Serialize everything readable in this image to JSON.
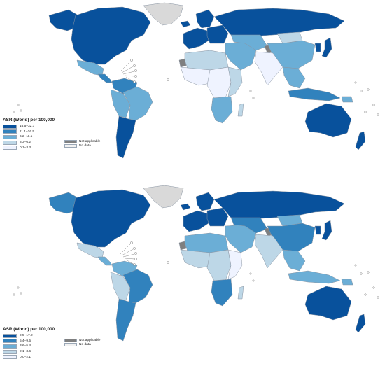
{
  "colors": {
    "c1": "#08519c",
    "c2": "#3182bd",
    "c3": "#6baed6",
    "c4": "#bdd7e7",
    "c5": "#eff3ff",
    "not_applicable": "#7f7f7f",
    "no_data": "#f2f2f2",
    "greenland": "#d9d9d9",
    "border": "#8a95a3"
  },
  "maps": [
    {
      "legend": {
        "title": "ASR (World) per 100,000",
        "classes": [
          "16.5–32.7",
          "11.1–16.5",
          "6.2–11.1",
          "3.3–6.2",
          "0.1–3.3"
        ]
      },
      "na_legend": {
        "not_applicable": "Not applicable",
        "no_data": "No data"
      },
      "regions": [
        {
          "name": "north-america",
          "level": 1
        },
        {
          "name": "alaska",
          "level": 1
        },
        {
          "name": "greenland",
          "level": "greenland"
        },
        {
          "name": "mexico",
          "level": 3
        },
        {
          "name": "central-america",
          "level": 2
        },
        {
          "name": "colombia-venezuela",
          "level": 2
        },
        {
          "name": "brazil",
          "level": 3
        },
        {
          "name": "peru-bolivia",
          "level": 3
        },
        {
          "name": "argentina-chile",
          "level": 1
        },
        {
          "name": "iceland",
          "level": 1
        },
        {
          "name": "scandinavia",
          "level": 1
        },
        {
          "name": "western-europe",
          "level": 1
        },
        {
          "name": "eastern-europe",
          "level": 1
        },
        {
          "name": "russia",
          "level": 1
        },
        {
          "name": "north-africa",
          "level": 4
        },
        {
          "name": "west-africa",
          "level": 5
        },
        {
          "name": "central-africa",
          "level": 5
        },
        {
          "name": "east-africa",
          "level": 4
        },
        {
          "name": "southern-africa",
          "level": 3
        },
        {
          "name": "madagascar",
          "level": 4
        },
        {
          "name": "middle-east",
          "level": 3
        },
        {
          "name": "central-asia",
          "level": 3
        },
        {
          "name": "china",
          "level": 3
        },
        {
          "name": "mongolia",
          "level": 4
        },
        {
          "name": "india",
          "level": 5
        },
        {
          "name": "kashmir",
          "level": "not_applicable"
        },
        {
          "name": "western-sahara",
          "level": "not_applicable"
        },
        {
          "name": "southeast-asia",
          "level": 3
        },
        {
          "name": "indonesia",
          "level": 2
        },
        {
          "name": "japan",
          "level": 1
        },
        {
          "name": "korea",
          "level": 1
        },
        {
          "name": "australia",
          "level": 1
        },
        {
          "name": "new-zealand",
          "level": 1
        },
        {
          "name": "png",
          "level": 3
        }
      ]
    },
    {
      "legend": {
        "title": "ASR (World) per 100,000",
        "classes": [
          "9.5–17.2",
          "5.4–9.5",
          "3.6–5.4",
          "2.1–3.6",
          "0.0–2.1"
        ]
      },
      "na_legend": {
        "not_applicable": "Not applicable",
        "no_data": "No data"
      },
      "regions": [
        {
          "name": "north-america",
          "level": 1
        },
        {
          "name": "alaska",
          "level": 2
        },
        {
          "name": "greenland",
          "level": "greenland"
        },
        {
          "name": "mexico",
          "level": 4
        },
        {
          "name": "central-america",
          "level": 3
        },
        {
          "name": "colombia-venezuela",
          "level": 3
        },
        {
          "name": "brazil",
          "level": 2
        },
        {
          "name": "peru-bolivia",
          "level": 4
        },
        {
          "name": "argentina-chile",
          "level": 2
        },
        {
          "name": "iceland",
          "level": 1
        },
        {
          "name": "scandinavia",
          "level": 1
        },
        {
          "name": "western-europe",
          "level": 1
        },
        {
          "name": "eastern-europe",
          "level": 1
        },
        {
          "name": "russia",
          "level": 1
        },
        {
          "name": "north-africa",
          "level": 3
        },
        {
          "name": "west-africa",
          "level": 4
        },
        {
          "name": "central-africa",
          "level": 4
        },
        {
          "name": "east-africa",
          "level": 5
        },
        {
          "name": "southern-africa",
          "level": 2
        },
        {
          "name": "madagascar",
          "level": 4
        },
        {
          "name": "middle-east",
          "level": 3
        },
        {
          "name": "central-asia",
          "level": 2
        },
        {
          "name": "china",
          "level": 2
        },
        {
          "name": "mongolia",
          "level": 3
        },
        {
          "name": "india",
          "level": 4
        },
        {
          "name": "kashmir",
          "level": "not_applicable"
        },
        {
          "name": "western-sahara",
          "level": "not_applicable"
        },
        {
          "name": "southeast-asia",
          "level": 3
        },
        {
          "name": "indonesia",
          "level": 3
        },
        {
          "name": "japan",
          "level": 1
        },
        {
          "name": "korea",
          "level": 1
        },
        {
          "name": "australia",
          "level": 1
        },
        {
          "name": "new-zealand",
          "level": 1
        },
        {
          "name": "png",
          "level": 3
        }
      ]
    }
  ]
}
